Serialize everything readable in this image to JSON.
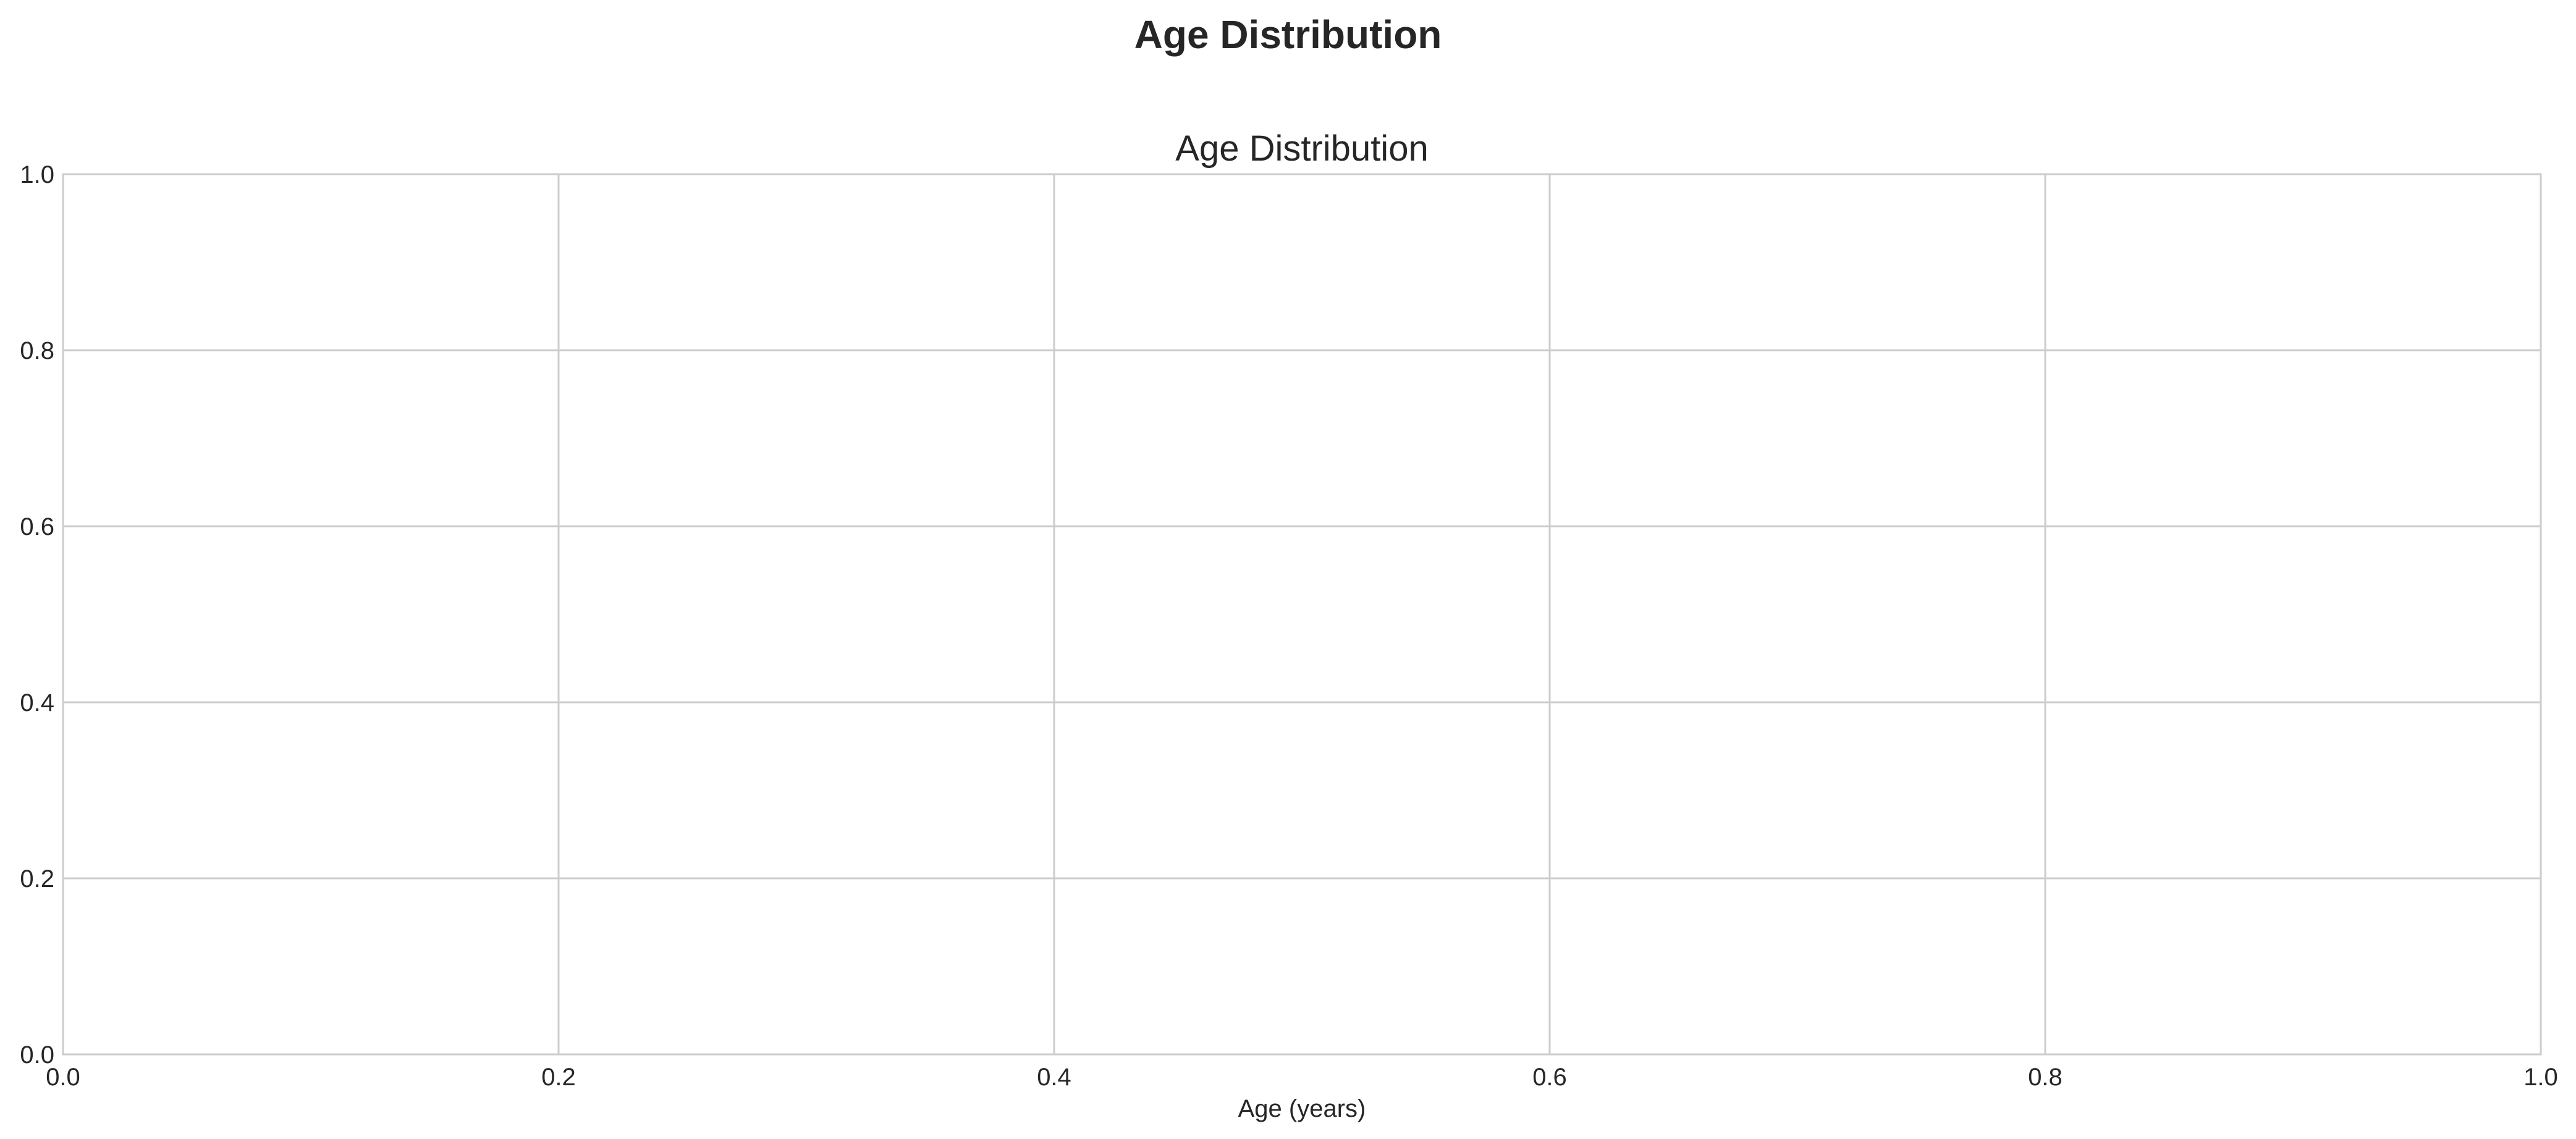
{
  "figure": {
    "suptitle": "Age Distribution"
  },
  "chart_data": {
    "type": "bar",
    "title": "Age Distribution",
    "xlabel": "Age (years)",
    "ylabel": "",
    "xlim": [
      0.0,
      1.0
    ],
    "ylim": [
      0.0,
      1.0
    ],
    "xticks": [
      0.0,
      0.2,
      0.4,
      0.6,
      0.8,
      1.0
    ],
    "xtick_labels": [
      "0.0",
      "0.2",
      "0.4",
      "0.6",
      "0.8",
      "1.0"
    ],
    "yticks": [
      0.0,
      0.2,
      0.4,
      0.6,
      0.8,
      1.0
    ],
    "ytick_labels": [
      "0.0",
      "0.2",
      "0.4",
      "0.6",
      "0.8",
      "1.0"
    ],
    "grid": true,
    "series": [],
    "colors": {
      "grid": "#cccccc",
      "spine": "#cccccc",
      "text": "#262626",
      "background": "#ffffff"
    }
  }
}
